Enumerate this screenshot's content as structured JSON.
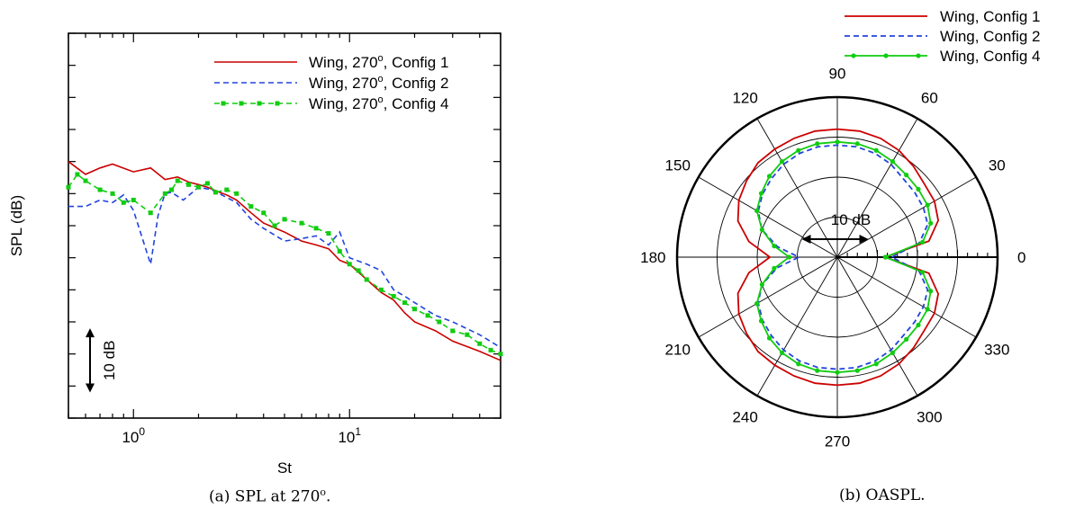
{
  "figure": {
    "caption_a": {
      "prefix": "(a) SPL at 270",
      "sup": "o",
      "suffix": "."
    },
    "caption_b": "(b) OASPL."
  },
  "chart_data": [
    {
      "type": "line",
      "title": "",
      "xlabel": "St",
      "ylabel": "SPL (dB)",
      "xscale": "log",
      "xlim": [
        0.5,
        50
      ],
      "x_ticklabels": [
        {
          "base": "10",
          "exp": "0",
          "value": 1
        },
        {
          "base": "10",
          "exp": "1",
          "value": 10
        }
      ],
      "ylim": [
        0,
        30
      ],
      "y_ticks_unlabeled": [
        0,
        2.5,
        5,
        7.5,
        10,
        12.5,
        15,
        17.5,
        20,
        22.5,
        25,
        27.5,
        30
      ],
      "scale_bar": {
        "label": "10 dB",
        "span": 5
      },
      "grid": false,
      "legend_position": "top-right",
      "series": [
        {
          "name_text": "Wing, 270",
          "name_sup": "o",
          "name_suffix": ", Config 1",
          "color": "#cc0000",
          "dash": "solid",
          "marker": "none",
          "x": [
            0.5,
            0.6,
            0.7,
            0.8,
            1.0,
            1.2,
            1.4,
            1.6,
            1.8,
            2.0,
            2.2,
            2.5,
            2.7,
            3.0,
            3.5,
            4.0,
            5.0,
            6.0,
            7.0,
            8.0,
            9.0,
            10,
            12,
            14,
            16,
            18,
            20,
            25,
            30,
            40,
            50
          ],
          "y": [
            20.0,
            19.0,
            19.5,
            19.8,
            19.2,
            19.5,
            18.6,
            18.8,
            18.4,
            18.2,
            18.0,
            17.6,
            17.4,
            17.0,
            16.0,
            15.2,
            14.5,
            13.8,
            13.5,
            13.2,
            12.3,
            12.0,
            10.8,
            9.8,
            9.2,
            8.2,
            7.5,
            6.8,
            6.0,
            5.2,
            4.5
          ]
        },
        {
          "name_text": "Wing, 270",
          "name_sup": "o",
          "name_suffix": ", Config 2",
          "color": "#2244dd",
          "dash": "dashed",
          "marker": "none",
          "x": [
            0.5,
            0.6,
            0.7,
            0.8,
            0.9,
            1.0,
            1.1,
            1.2,
            1.3,
            1.4,
            1.5,
            1.7,
            2.0,
            2.3,
            2.7,
            3.0,
            3.5,
            4.0,
            5.0,
            6.0,
            7.0,
            8.0,
            9.0,
            10,
            12,
            14,
            16,
            18,
            20,
            25,
            30,
            40,
            50
          ],
          "y": [
            16.5,
            16.5,
            17.0,
            16.8,
            17.4,
            16.2,
            14.0,
            12.0,
            15.8,
            17.5,
            17.6,
            17.0,
            18.0,
            17.8,
            17.2,
            16.8,
            15.5,
            14.8,
            13.8,
            14.0,
            14.2,
            13.5,
            14.5,
            12.5,
            12.0,
            11.5,
            10.0,
            9.5,
            9.0,
            8.0,
            7.5,
            6.5,
            5.5
          ]
        },
        {
          "name_text": "Wing, 270",
          "name_sup": "o",
          "name_suffix": ", Config 4",
          "color": "#11cc11",
          "dash": "dashed",
          "marker": "square",
          "x": [
            0.5,
            0.55,
            0.6,
            0.7,
            0.8,
            0.9,
            1.0,
            1.2,
            1.4,
            1.5,
            1.6,
            1.8,
            2.0,
            2.2,
            2.4,
            2.7,
            3.0,
            3.5,
            4.0,
            4.5,
            5.0,
            6.0,
            7.0,
            8.0,
            9.0,
            10,
            11,
            12,
            14,
            16,
            18,
            20,
            23,
            26,
            30,
            35,
            40,
            45,
            50
          ],
          "y": [
            18.0,
            19.0,
            18.5,
            17.8,
            17.5,
            16.8,
            17.0,
            16.0,
            17.5,
            17.8,
            18.5,
            18.2,
            18.0,
            18.3,
            17.6,
            17.8,
            17.5,
            16.5,
            16.0,
            15.0,
            15.5,
            15.2,
            14.8,
            14.4,
            13.0,
            12.0,
            11.5,
            10.8,
            10.0,
            9.5,
            9.0,
            8.5,
            8.0,
            7.5,
            6.8,
            6.5,
            5.8,
            5.3,
            5.0
          ]
        }
      ]
    },
    {
      "type": "polar",
      "title": "",
      "theta_ticklabels": [
        "0",
        "30",
        "60",
        "90",
        "120",
        "150",
        "180",
        "210",
        "240",
        "270",
        "300",
        "330"
      ],
      "radial_scale_label": "10 dB",
      "rings": 4,
      "legend_position": "top-right",
      "series": [
        {
          "name": "Wing, Config 1",
          "color": "#cc0000",
          "dash": "solid",
          "marker": "none",
          "theta": [
            0,
            10,
            20,
            30,
            40,
            50,
            60,
            70,
            80,
            90,
            100,
            110,
            120,
            130,
            140,
            150,
            160,
            170,
            180,
            190,
            200,
            210,
            220,
            230,
            240,
            250,
            260,
            270,
            280,
            290,
            300,
            310,
            320,
            330,
            340,
            350,
            360
          ],
          "r": [
            0.3,
            0.58,
            0.67,
            0.7,
            0.71,
            0.74,
            0.77,
            0.79,
            0.8,
            0.8,
            0.8,
            0.79,
            0.78,
            0.77,
            0.74,
            0.71,
            0.66,
            0.56,
            0.42,
            0.56,
            0.66,
            0.71,
            0.74,
            0.77,
            0.78,
            0.79,
            0.8,
            0.8,
            0.8,
            0.79,
            0.77,
            0.74,
            0.71,
            0.7,
            0.67,
            0.58,
            0.3
          ]
        },
        {
          "name": "Wing, Config 2",
          "color": "#2244dd",
          "dash": "dashed",
          "marker": "none",
          "theta": [
            0,
            10,
            20,
            30,
            40,
            50,
            60,
            70,
            80,
            90,
            100,
            110,
            120,
            130,
            140,
            150,
            160,
            170,
            180,
            190,
            200,
            210,
            220,
            230,
            240,
            250,
            260,
            270,
            280,
            290,
            300,
            310,
            320,
            330,
            340,
            350,
            360
          ],
          "r": [
            0.34,
            0.52,
            0.6,
            0.62,
            0.63,
            0.64,
            0.67,
            0.69,
            0.7,
            0.7,
            0.7,
            0.69,
            0.67,
            0.64,
            0.61,
            0.57,
            0.5,
            0.38,
            0.24,
            0.38,
            0.5,
            0.57,
            0.61,
            0.64,
            0.67,
            0.69,
            0.7,
            0.7,
            0.7,
            0.69,
            0.67,
            0.64,
            0.63,
            0.62,
            0.6,
            0.52,
            0.34
          ]
        },
        {
          "name": "Wing, Config 4",
          "color": "#11cc11",
          "dash": "solid",
          "marker": "circle",
          "theta": [
            0,
            10,
            20,
            30,
            40,
            50,
            60,
            70,
            80,
            90,
            100,
            110,
            120,
            130,
            140,
            150,
            160,
            170,
            180,
            190,
            200,
            210,
            220,
            230,
            240,
            250,
            260,
            270,
            280,
            290,
            300,
            310,
            320,
            330,
            340,
            350,
            360
          ],
          "r": [
            0.3,
            0.54,
            0.62,
            0.65,
            0.66,
            0.67,
            0.69,
            0.71,
            0.72,
            0.72,
            0.72,
            0.71,
            0.69,
            0.66,
            0.62,
            0.58,
            0.5,
            0.4,
            0.3,
            0.4,
            0.5,
            0.58,
            0.62,
            0.66,
            0.69,
            0.71,
            0.72,
            0.72,
            0.72,
            0.71,
            0.69,
            0.67,
            0.66,
            0.65,
            0.62,
            0.54,
            0.3
          ]
        }
      ]
    }
  ]
}
